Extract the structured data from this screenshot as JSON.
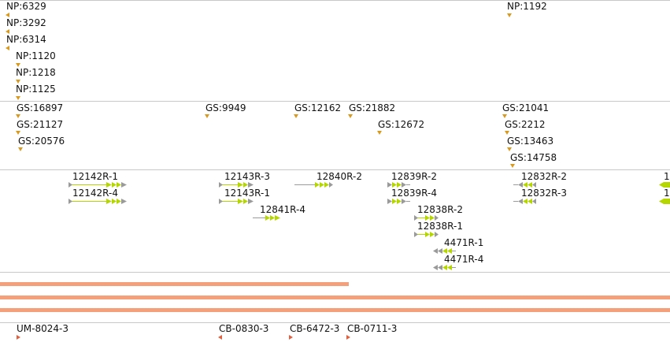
{
  "np_track": {
    "labels": [
      "NP:6329",
      "NP:3292",
      "NP:6314",
      "NP:1120",
      "NP:1218",
      "NP:1125",
      "NP:1192"
    ]
  },
  "gs_track": {
    "labels": [
      "GS:16897",
      "GS:21127",
      "GS:20576",
      "GS:9949",
      "GS:12162",
      "GS:21882",
      "GS:12672",
      "GS:21041",
      "GS:2212",
      "GS:13463",
      "GS:14758"
    ]
  },
  "gene_track": {
    "labels": [
      "12142R-1",
      "12142R-4",
      "12143R-3",
      "12143R-1",
      "12841R-4",
      "12840R-2",
      "12839R-2",
      "12839R-4",
      "12838R-2",
      "12838R-1",
      "4471R-1",
      "4471R-4",
      "12832R-2",
      "12832R-3",
      "1",
      "1"
    ]
  },
  "cb_track": {
    "labels": [
      "UM-8024-3",
      "CB-0830-3",
      "CB-6472-3",
      "CB-0711-3"
    ]
  },
  "colors": {
    "np_marker": "#d89a20",
    "forward_gene": "#b6d600",
    "reverse_gene": "#9a9a9a",
    "coverage_bar": "#f4a07a",
    "cb_marker": "#e06040",
    "separator": "#c8c8c8"
  }
}
